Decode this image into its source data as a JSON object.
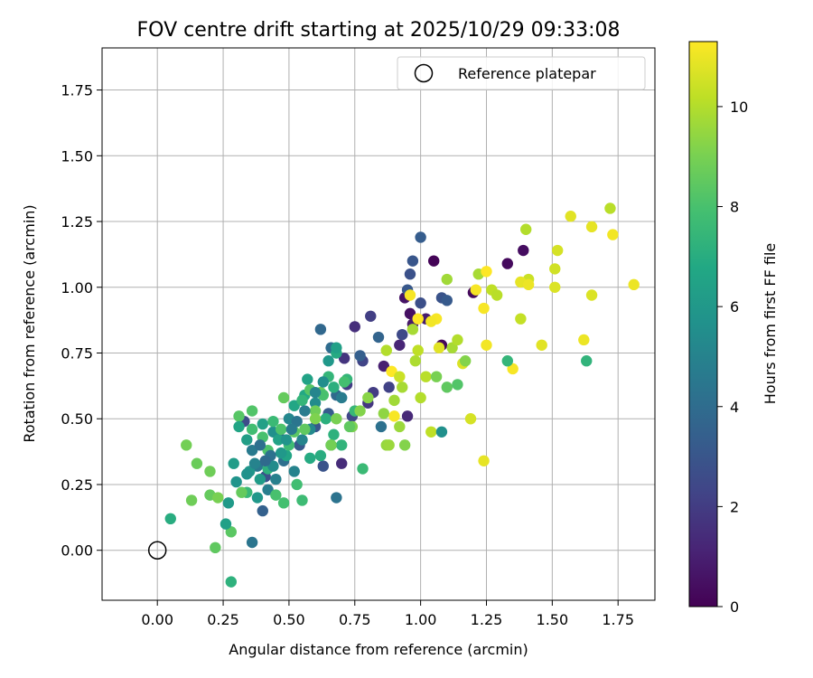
{
  "chart_data": {
    "type": "scatter",
    "title": "FOV centre drift starting at 2025/10/29 09:33:08",
    "xlabel": "Angular distance from reference (arcmin)",
    "ylabel": "Rotation from reference (arcmin)",
    "xlim": [
      -0.21,
      1.89
    ],
    "ylim": [
      -0.19,
      1.91
    ],
    "xticks": [
      0.0,
      0.25,
      0.5,
      0.75,
      1.0,
      1.25,
      1.5,
      1.75
    ],
    "xtick_labels": [
      "0.00",
      "0.25",
      "0.50",
      "0.75",
      "1.00",
      "1.25",
      "1.50",
      "1.75"
    ],
    "yticks": [
      0.0,
      0.25,
      0.5,
      0.75,
      1.0,
      1.25,
      1.5,
      1.75
    ],
    "ytick_labels": [
      "0.00",
      "0.25",
      "0.50",
      "0.75",
      "1.00",
      "1.25",
      "1.50",
      "1.75"
    ],
    "grid": true,
    "legend": {
      "position": "top-right",
      "label": "Reference platepar"
    },
    "reference_point": {
      "x": 0.0,
      "y": 0.0
    },
    "colorbar": {
      "label": "Hours from first FF file",
      "min": 0,
      "max": 11.3,
      "ticks": [
        0,
        2,
        4,
        6,
        8,
        10
      ],
      "tick_labels": [
        "0",
        "2",
        "4",
        "6",
        "8",
        "10"
      ],
      "colormap": "viridis"
    },
    "points": [
      [
        1.05,
        1.1,
        0.1
      ],
      [
        1.08,
        0.78,
        0.2
      ],
      [
        1.2,
        0.98,
        0.3
      ],
      [
        1.39,
        1.14,
        0.4
      ],
      [
        1.33,
        1.09,
        0.3
      ],
      [
        0.96,
        0.9,
        0.5
      ],
      [
        0.94,
        0.96,
        0.6
      ],
      [
        0.97,
        0.86,
        0.8
      ],
      [
        1.02,
        0.88,
        0.9
      ],
      [
        0.86,
        0.7,
        1.0
      ],
      [
        0.92,
        0.78,
        1.2
      ],
      [
        0.95,
        0.51,
        1.3
      ],
      [
        0.75,
        0.85,
        1.5
      ],
      [
        0.71,
        0.73,
        1.7
      ],
      [
        0.7,
        0.33,
        1.4
      ],
      [
        0.81,
        0.89,
        2.1
      ],
      [
        0.78,
        0.72,
        2.3
      ],
      [
        0.88,
        0.62,
        2.2
      ],
      [
        0.93,
        0.82,
        2.5
      ],
      [
        0.96,
        1.05,
        2.8
      ],
      [
        0.97,
        1.1,
        3.0
      ],
      [
        0.95,
        0.99,
        3.1
      ],
      [
        1.0,
        0.94,
        2.7
      ],
      [
        1.08,
        0.96,
        2.9
      ],
      [
        1.1,
        0.95,
        3.2
      ],
      [
        1.0,
        1.19,
        3.3
      ],
      [
        0.77,
        0.74,
        3.4
      ],
      [
        0.84,
        0.81,
        3.6
      ],
      [
        0.62,
        0.84,
        3.8
      ],
      [
        0.66,
        0.77,
        4.0
      ],
      [
        0.68,
        0.59,
        3.9
      ],
      [
        0.85,
        0.47,
        4.2
      ],
      [
        0.68,
        0.2,
        4.3
      ],
      [
        0.36,
        0.03,
        4.4
      ],
      [
        0.33,
        0.49,
        2.6
      ],
      [
        0.41,
        0.28,
        2.8
      ],
      [
        0.4,
        0.15,
        3.5
      ],
      [
        0.46,
        0.44,
        3.7
      ],
      [
        0.54,
        0.4,
        3.2
      ],
      [
        0.6,
        0.47,
        3.0
      ],
      [
        0.63,
        0.32,
        2.9
      ],
      [
        0.65,
        0.52,
        3.3
      ],
      [
        0.74,
        0.51,
        2.4
      ],
      [
        0.72,
        0.63,
        2.0
      ],
      [
        0.8,
        0.56,
        1.8
      ],
      [
        0.82,
        0.6,
        2.0
      ],
      [
        0.48,
        0.34,
        4.1
      ],
      [
        0.38,
        0.32,
        4.5
      ],
      [
        0.36,
        0.38,
        4.6
      ],
      [
        0.42,
        0.23,
        4.8
      ],
      [
        0.45,
        0.27,
        4.9
      ],
      [
        0.52,
        0.3,
        5.0
      ],
      [
        0.55,
        0.42,
        5.1
      ],
      [
        0.58,
        0.46,
        5.3
      ],
      [
        0.6,
        0.56,
        5.4
      ],
      [
        0.66,
        0.4,
        5.5
      ],
      [
        0.7,
        0.58,
        4.7
      ],
      [
        0.5,
        0.5,
        5.2
      ],
      [
        0.44,
        0.45,
        5.6
      ],
      [
        0.3,
        0.26,
        5.8
      ],
      [
        0.35,
        0.3,
        5.9
      ],
      [
        0.38,
        0.2,
        6.0
      ],
      [
        0.27,
        0.18,
        6.1
      ],
      [
        0.29,
        0.33,
        6.2
      ],
      [
        0.34,
        0.42,
        6.3
      ],
      [
        0.4,
        0.48,
        6.4
      ],
      [
        0.46,
        0.42,
        6.5
      ],
      [
        0.49,
        0.36,
        6.6
      ],
      [
        0.52,
        0.55,
        6.7
      ],
      [
        0.56,
        0.59,
        6.8
      ],
      [
        0.58,
        0.35,
        6.9
      ],
      [
        0.62,
        0.36,
        7.0
      ],
      [
        0.64,
        0.5,
        7.1
      ],
      [
        0.67,
        0.44,
        7.2
      ],
      [
        0.7,
        0.4,
        7.3
      ],
      [
        0.72,
        0.65,
        7.4
      ],
      [
        0.75,
        0.53,
        7.5
      ],
      [
        0.78,
        0.31,
        7.6
      ],
      [
        0.55,
        0.19,
        7.7
      ],
      [
        0.53,
        0.25,
        7.8
      ],
      [
        0.48,
        0.18,
        7.9
      ],
      [
        0.45,
        0.21,
        8.0
      ],
      [
        0.42,
        0.38,
        8.1
      ],
      [
        0.36,
        0.53,
        8.2
      ],
      [
        0.31,
        0.51,
        8.3
      ],
      [
        0.28,
        0.07,
        8.4
      ],
      [
        0.22,
        0.01,
        8.5
      ],
      [
        0.2,
        0.21,
        8.6
      ],
      [
        0.15,
        0.33,
        8.7
      ],
      [
        0.13,
        0.19,
        8.8
      ],
      [
        0.11,
        0.4,
        8.9
      ],
      [
        0.05,
        0.12,
        7.0
      ],
      [
        0.28,
        -0.12,
        7.2
      ],
      [
        0.26,
        0.1,
        6.4
      ],
      [
        0.31,
        0.47,
        6.6
      ],
      [
        0.36,
        0.46,
        7.8
      ],
      [
        0.4,
        0.43,
        8.0
      ],
      [
        0.44,
        0.49,
        7.6
      ],
      [
        0.48,
        0.58,
        8.6
      ],
      [
        0.52,
        0.45,
        8.4
      ],
      [
        0.56,
        0.46,
        8.5
      ],
      [
        0.6,
        0.53,
        8.8
      ],
      [
        0.62,
        0.6,
        8.7
      ],
      [
        0.66,
        0.4,
        8.9
      ],
      [
        0.68,
        0.5,
        9.0
      ],
      [
        0.74,
        0.47,
        9.1
      ],
      [
        0.77,
        0.53,
        9.2
      ],
      [
        0.8,
        0.58,
        9.3
      ],
      [
        0.86,
        0.52,
        9.4
      ],
      [
        0.87,
        0.4,
        9.5
      ],
      [
        0.92,
        0.47,
        9.6
      ],
      [
        0.94,
        0.4,
        9.2
      ],
      [
        0.9,
        0.57,
        9.7
      ],
      [
        0.93,
        0.62,
        9.8
      ],
      [
        0.98,
        0.72,
        9.9
      ],
      [
        1.0,
        0.58,
        10.0
      ],
      [
        1.02,
        0.66,
        10.1
      ],
      [
        1.04,
        0.45,
        10.2
      ],
      [
        1.08,
        0.45,
        5.6
      ],
      [
        1.1,
        0.62,
        8.5
      ],
      [
        1.14,
        0.63,
        8.2
      ],
      [
        1.06,
        0.66,
        9.0
      ],
      [
        1.12,
        0.77,
        9.8
      ],
      [
        1.14,
        0.8,
        10.0
      ],
      [
        1.1,
        1.03,
        9.7
      ],
      [
        1.22,
        1.05,
        9.8
      ],
      [
        1.27,
        0.99,
        10.2
      ],
      [
        1.29,
        0.97,
        10.1
      ],
      [
        1.38,
        0.88,
        10.3
      ],
      [
        1.4,
        1.22,
        10.0
      ],
      [
        1.41,
        1.03,
        10.4
      ],
      [
        1.51,
        1.07,
        10.5
      ],
      [
        1.52,
        1.14,
        10.6
      ],
      [
        1.51,
        1.0,
        10.7
      ],
      [
        1.57,
        1.27,
        10.8
      ],
      [
        1.65,
        1.23,
        10.9
      ],
      [
        1.65,
        0.97,
        10.7
      ],
      [
        1.62,
        0.8,
        11.0
      ],
      [
        1.72,
        1.3,
        10.1
      ],
      [
        1.73,
        1.2,
        11.1
      ],
      [
        1.81,
        1.01,
        11.0
      ],
      [
        1.46,
        0.78,
        10.8
      ],
      [
        1.35,
        0.69,
        11.2
      ],
      [
        1.33,
        0.72,
        7.4
      ],
      [
        1.63,
        0.72,
        7.3
      ],
      [
        1.38,
        1.02,
        10.9
      ],
      [
        1.41,
        1.01,
        11.0
      ],
      [
        1.25,
        0.78,
        11.1
      ],
      [
        1.24,
        0.92,
        11.2
      ],
      [
        1.25,
        1.06,
        11.3
      ],
      [
        1.21,
        0.99,
        11.2
      ],
      [
        1.19,
        0.5,
        10.6
      ],
      [
        1.24,
        0.34,
        10.9
      ],
      [
        1.16,
        0.71,
        10.7
      ],
      [
        1.17,
        0.72,
        9.2
      ],
      [
        1.07,
        0.77,
        10.8
      ],
      [
        1.06,
        0.88,
        11.2
      ],
      [
        1.04,
        0.87,
        11.1
      ],
      [
        0.99,
        0.88,
        11.3
      ],
      [
        0.96,
        0.97,
        11.2
      ],
      [
        0.97,
        0.84,
        9.8
      ],
      [
        0.99,
        0.76,
        10.2
      ],
      [
        0.89,
        0.68,
        11.3
      ],
      [
        0.92,
        0.66,
        10.4
      ],
      [
        0.87,
        0.76,
        10.0
      ],
      [
        0.9,
        0.51,
        11.2
      ],
      [
        0.88,
        0.4,
        9.6
      ],
      [
        0.73,
        0.47,
        8.5
      ],
      [
        0.71,
        0.64,
        7.9
      ],
      [
        0.67,
        0.62,
        7.1
      ],
      [
        0.57,
        0.65,
        6.5
      ],
      [
        0.55,
        0.57,
        7.4
      ],
      [
        0.5,
        0.4,
        7.7
      ],
      [
        0.47,
        0.46,
        8.1
      ],
      [
        0.42,
        0.31,
        7.2
      ],
      [
        0.39,
        0.27,
        6.2
      ],
      [
        0.34,
        0.22,
        7.5
      ],
      [
        0.32,
        0.22,
        8.6
      ],
      [
        0.23,
        0.2,
        9.0
      ],
      [
        0.2,
        0.3,
        8.8
      ],
      [
        0.58,
        0.61,
        8.3
      ],
      [
        0.6,
        0.5,
        9.1
      ],
      [
        0.63,
        0.59,
        8.0
      ],
      [
        0.65,
        0.66,
        7.4
      ],
      [
        0.68,
        0.75,
        6.9
      ],
      [
        0.68,
        0.77,
        6.4
      ],
      [
        0.65,
        0.72,
        6.0
      ],
      [
        0.63,
        0.64,
        5.5
      ],
      [
        0.6,
        0.6,
        5.1
      ],
      [
        0.56,
        0.53,
        4.7
      ],
      [
        0.53,
        0.49,
        4.4
      ],
      [
        0.51,
        0.46,
        4.6
      ],
      [
        0.49,
        0.42,
        5.8
      ],
      [
        0.47,
        0.37,
        6.0
      ],
      [
        0.44,
        0.32,
        5.4
      ],
      [
        0.43,
        0.36,
        4.2
      ],
      [
        0.41,
        0.34,
        3.9
      ],
      [
        0.39,
        0.4,
        4.1
      ],
      [
        0.37,
        0.33,
        5.0
      ],
      [
        0.34,
        0.29,
        5.7
      ]
    ]
  }
}
